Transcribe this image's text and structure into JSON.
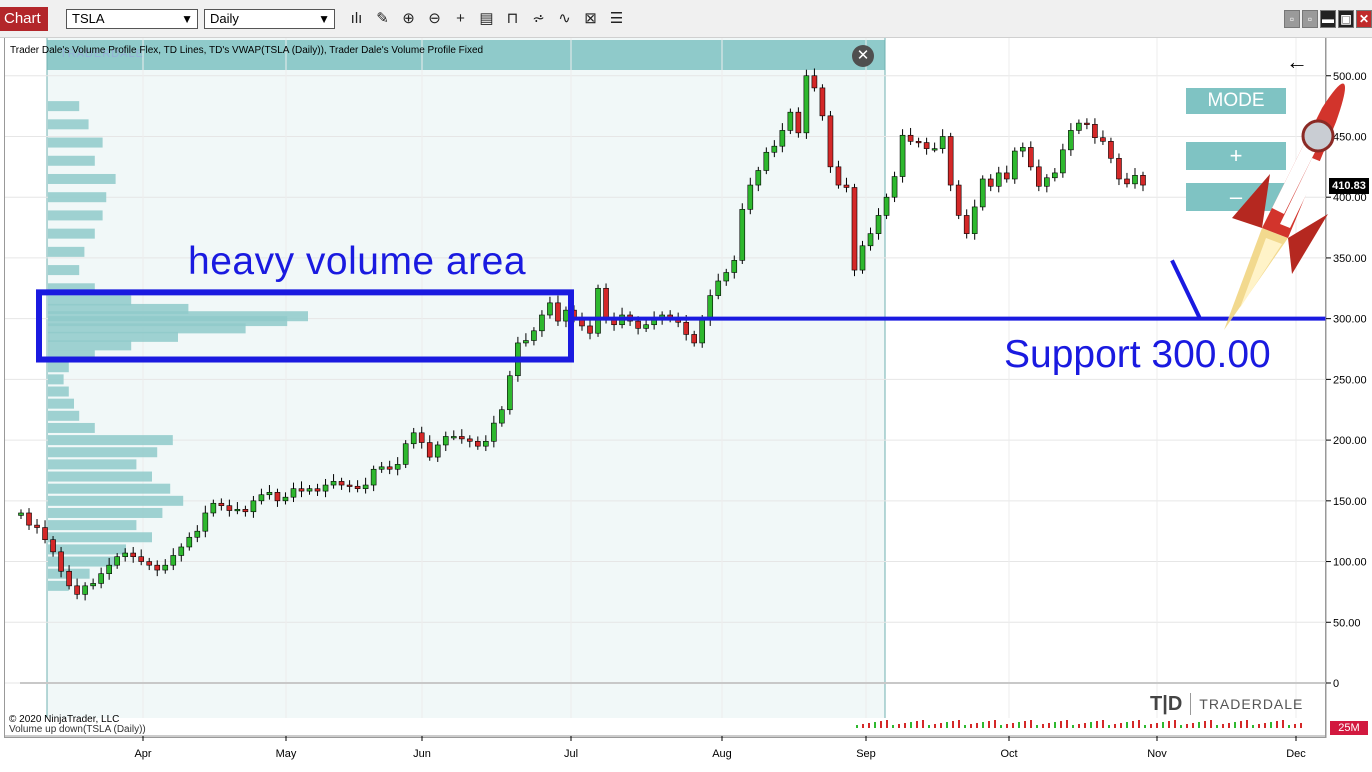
{
  "toolbar": {
    "chart_tab": "Chart",
    "instrument": "TSLA",
    "interval": "Daily",
    "tool_icons": [
      "bar-type-icon",
      "draw-pencil-icon",
      "zoom-in-icon",
      "zoom-out-icon",
      "crosshair-icon",
      "data-box-icon",
      "indicators-icon",
      "strategies-icon",
      "drawing-tools-icon",
      "properties-icon",
      "list-icon"
    ],
    "tool_glyphs": [
      "ılı",
      "✎",
      "⊕",
      "⊖",
      "+",
      "▤",
      "⊓",
      "⩫",
      "∿",
      "⊠",
      "☰"
    ],
    "window_buttons": [
      "▫",
      "▫",
      "▬",
      "▣",
      "✕"
    ]
  },
  "chart": {
    "indicator_line": "Trader Dale's Volume Profile Flex, TD Lines, TD's VWAP(TSLA (Daily)), Trader Dale's Volume Profile Fixed",
    "copyright": "© 2020 NinjaTrader, LLC",
    "volume_label": "Volume up down(TSLA (Daily))",
    "profile_watermark": "TRADERDALE",
    "close_glyph": "✕",
    "back_arrow": "←",
    "buttons": {
      "mode": "MODE",
      "plus": "+",
      "minus": "–"
    },
    "annotations": {
      "heavy_volume": "heavy volume area",
      "support": "Support 300.00"
    },
    "last_price": "410.83",
    "volume_tag": "25M",
    "logo_mark": "T|D",
    "logo_text": "TRADERDALE",
    "colors": {
      "up": "#2eb82e",
      "down": "#d42828",
      "profile": "#8fcaca",
      "annotation": "#1a1ae0",
      "price_tag": "#000000",
      "volume_tag": "#d2193f"
    }
  },
  "chart_data": {
    "type": "candlestick",
    "instrument": "TSLA",
    "interval": "Daily",
    "y_ticks": [
      0,
      50,
      100,
      150,
      200,
      250,
      300,
      350,
      400,
      450,
      500
    ],
    "y_tick_labels": [
      "0",
      "50.00",
      "100.00",
      "150.00",
      "200.00",
      "250.00",
      "300.00",
      "350.00",
      "400.00",
      "450.00",
      "500.00"
    ],
    "x_ticks": [
      "Apr",
      "May",
      "Jun",
      "Jul",
      "Aug",
      "Sep",
      "Oct",
      "Nov",
      "Dec"
    ],
    "ylim": [
      0,
      510
    ],
    "support_level": 300,
    "heavy_volume_zone": [
      268,
      320
    ],
    "last_price": 410.83,
    "closes": [
      140,
      130,
      128,
      118,
      108,
      92,
      80,
      73,
      80,
      82,
      90,
      97,
      104,
      107,
      104,
      100,
      97,
      93,
      97,
      105,
      112,
      120,
      125,
      140,
      148,
      146,
      142,
      143,
      141,
      150,
      155,
      157,
      150,
      153,
      160,
      158,
      160,
      158,
      163,
      166,
      163,
      162,
      160,
      163,
      176,
      178,
      176,
      180,
      197,
      206,
      198,
      186,
      196,
      203,
      203,
      201,
      199,
      195,
      199,
      214,
      225,
      253,
      280,
      282,
      290,
      303,
      313,
      298,
      307,
      300,
      294,
      288,
      325,
      300,
      295,
      303,
      298,
      292,
      295,
      300,
      303,
      300,
      297,
      287,
      280,
      299,
      319,
      331,
      338,
      348,
      390,
      410,
      422,
      437,
      442,
      455,
      470,
      453,
      500,
      490,
      467,
      425,
      410,
      408,
      340,
      360,
      370,
      385,
      400,
      417,
      451,
      446,
      445,
      440,
      440,
      450,
      410,
      385,
      370,
      392,
      415,
      409,
      420,
      415,
      438,
      441,
      425,
      409,
      416,
      420,
      439,
      455,
      461,
      460,
      449,
      446,
      432,
      415,
      411,
      418,
      410
    ]
  }
}
